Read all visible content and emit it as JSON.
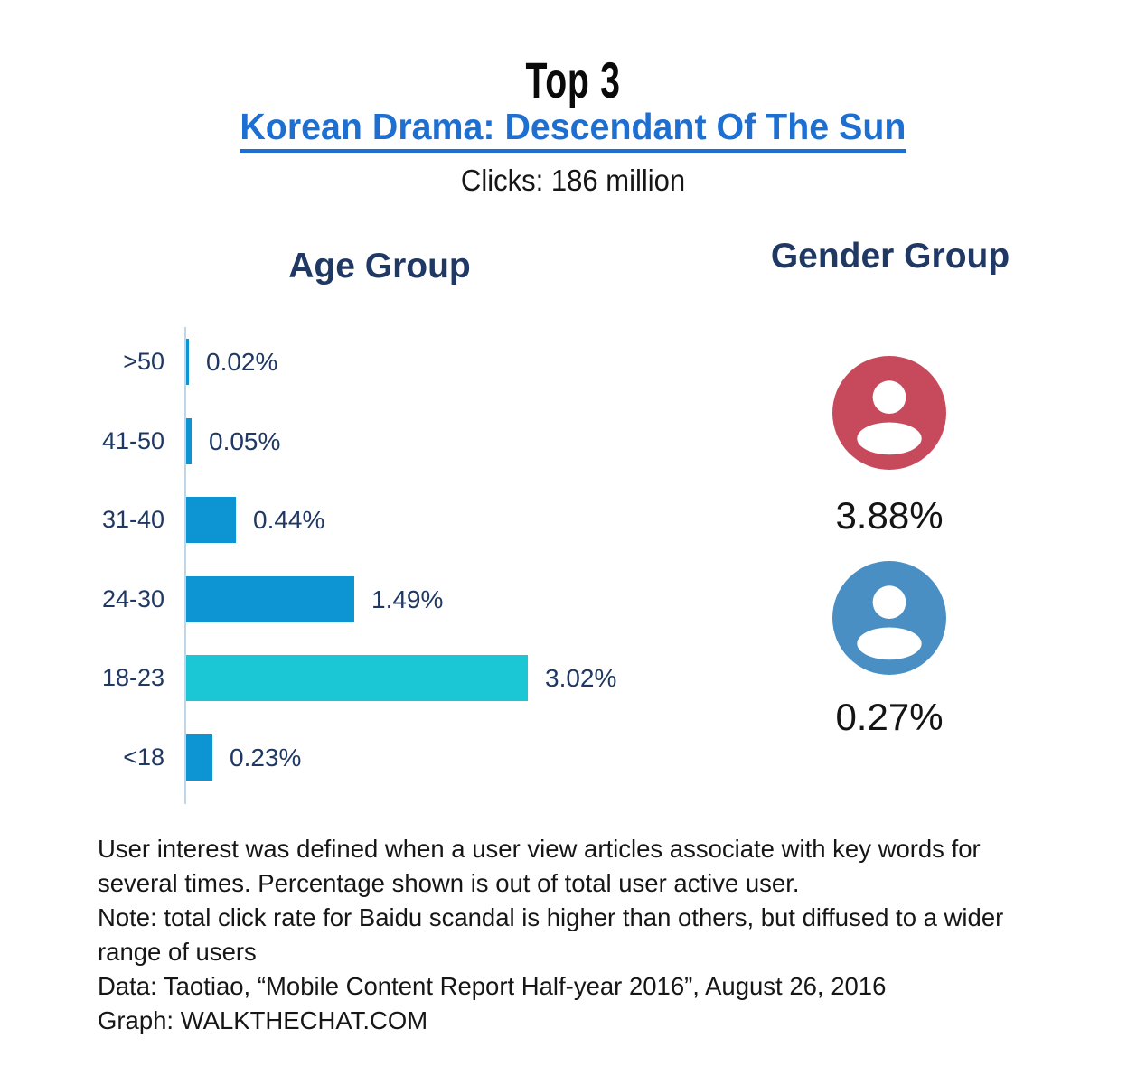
{
  "header": {
    "top_label": "Top 3",
    "title": "Korean Drama: Descendant Of The Sun",
    "subtitle": "Clicks: 186 million"
  },
  "chart_data": {
    "type": "bar",
    "orientation": "horizontal",
    "title": "Age Group",
    "categories": [
      ">50",
      "41-50",
      "31-40",
      "24-30",
      "18-23",
      "<18"
    ],
    "values": [
      0.02,
      0.05,
      0.44,
      1.49,
      3.02,
      0.23
    ],
    "labels": [
      "0.02%",
      "0.05%",
      "0.44%",
      "1.49%",
      "3.02%",
      "0.23%"
    ],
    "xlim": [
      0,
      3.02
    ],
    "grid": false,
    "legend": "none",
    "bar_color": "#0d94d2",
    "highlight_color": "#1bc7d4",
    "highlight_index": 4,
    "axis_color": "#bfd6ea",
    "label_color": "#1f3864"
  },
  "gender": {
    "title": "Gender Group",
    "items": [
      {
        "icon": "person-icon",
        "color": "#c74a5c",
        "value": "3.88%"
      },
      {
        "icon": "person-icon",
        "color": "#4a8fc4",
        "value": "0.27%"
      }
    ]
  },
  "footer": {
    "lines": [
      "User interest was defined when a user view articles associate with key words for",
      "several times. Percentage shown is out of total user active user.",
      "Note: total click rate for Baidu scandal is higher than others, but diffused to a wider",
      "range of users",
      "Data: Taotiao, “Mobile Content Report Half-year 2016”, August 26, 2016",
      "Graph: WALKTHECHAT.COM"
    ]
  },
  "colors": {
    "title_blue": "#1d6fd1",
    "navy": "#1f3864",
    "black": "#161616"
  }
}
